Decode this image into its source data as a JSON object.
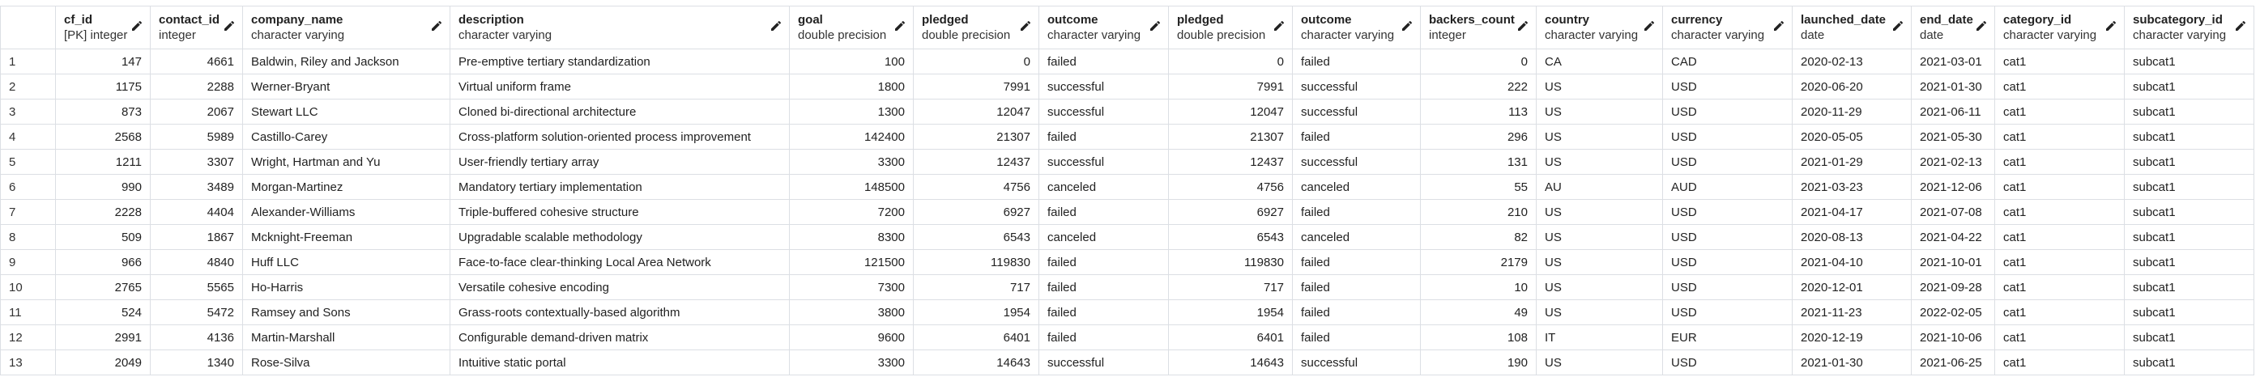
{
  "table": {
    "columns": [
      {
        "name": "cf_id",
        "type": "[PK] integer"
      },
      {
        "name": "contact_id",
        "type": "integer"
      },
      {
        "name": "company_name",
        "type": "character varying"
      },
      {
        "name": "description",
        "type": "character varying"
      },
      {
        "name": "goal",
        "type": "double precision"
      },
      {
        "name": "pledged",
        "type": "double precision"
      },
      {
        "name": "outcome",
        "type": "character varying"
      },
      {
        "name": "pledged",
        "type": "double precision"
      },
      {
        "name": "outcome",
        "type": "character varying"
      },
      {
        "name": "backers_count",
        "type": "integer"
      },
      {
        "name": "country",
        "type": "character varying"
      },
      {
        "name": "currency",
        "type": "character varying"
      },
      {
        "name": "launched_date",
        "type": "date"
      },
      {
        "name": "end_date",
        "type": "date"
      },
      {
        "name": "category_id",
        "type": "character varying"
      },
      {
        "name": "subcategory_id",
        "type": "character varying"
      }
    ],
    "rows": [
      {
        "number": 1,
        "cells": [
          147,
          4661,
          "Baldwin, Riley and Jackson",
          "Pre-emptive tertiary standardization",
          100,
          0,
          "failed",
          0,
          "failed",
          0,
          "CA",
          "CAD",
          "2020-02-13",
          "2021-03-01",
          "cat1",
          "subcat1"
        ]
      },
      {
        "number": 2,
        "cells": [
          1175,
          2288,
          "Werner-Bryant",
          "Virtual uniform frame",
          1800,
          7991,
          "successful",
          7991,
          "successful",
          222,
          "US",
          "USD",
          "2020-06-20",
          "2021-01-30",
          "cat1",
          "subcat1"
        ]
      },
      {
        "number": 3,
        "cells": [
          873,
          2067,
          "Stewart LLC",
          "Cloned bi-directional architecture",
          1300,
          12047,
          "successful",
          12047,
          "successful",
          113,
          "US",
          "USD",
          "2020-11-29",
          "2021-06-11",
          "cat1",
          "subcat1"
        ]
      },
      {
        "number": 4,
        "cells": [
          2568,
          5989,
          "Castillo-Carey",
          "Cross-platform solution-oriented process improvement",
          142400,
          21307,
          "failed",
          21307,
          "failed",
          296,
          "US",
          "USD",
          "2020-05-05",
          "2021-05-30",
          "cat1",
          "subcat1"
        ]
      },
      {
        "number": 5,
        "cells": [
          1211,
          3307,
          "Wright, Hartman and Yu",
          "User-friendly tertiary array",
          3300,
          12437,
          "successful",
          12437,
          "successful",
          131,
          "US",
          "USD",
          "2021-01-29",
          "2021-02-13",
          "cat1",
          "subcat1"
        ]
      },
      {
        "number": 6,
        "cells": [
          990,
          3489,
          "Morgan-Martinez",
          "Mandatory tertiary implementation",
          148500,
          4756,
          "canceled",
          4756,
          "canceled",
          55,
          "AU",
          "AUD",
          "2021-03-23",
          "2021-12-06",
          "cat1",
          "subcat1"
        ]
      },
      {
        "number": 7,
        "cells": [
          2228,
          4404,
          "Alexander-Williams",
          "Triple-buffered cohesive structure",
          7200,
          6927,
          "failed",
          6927,
          "failed",
          210,
          "US",
          "USD",
          "2021-04-17",
          "2021-07-08",
          "cat1",
          "subcat1"
        ]
      },
      {
        "number": 8,
        "cells": [
          509,
          1867,
          "Mcknight-Freeman",
          "Upgradable scalable methodology",
          8300,
          6543,
          "canceled",
          6543,
          "canceled",
          82,
          "US",
          "USD",
          "2020-08-13",
          "2021-04-22",
          "cat1",
          "subcat1"
        ]
      },
      {
        "number": 9,
        "cells": [
          966,
          4840,
          "Huff LLC",
          "Face-to-face clear-thinking Local Area Network",
          121500,
          119830,
          "failed",
          119830,
          "failed",
          2179,
          "US",
          "USD",
          "2021-04-10",
          "2021-10-01",
          "cat1",
          "subcat1"
        ]
      },
      {
        "number": 10,
        "cells": [
          2765,
          5565,
          "Ho-Harris",
          "Versatile cohesive encoding",
          7300,
          717,
          "failed",
          717,
          "failed",
          10,
          "US",
          "USD",
          "2020-12-01",
          "2021-09-28",
          "cat1",
          "subcat1"
        ]
      },
      {
        "number": 11,
        "cells": [
          524,
          5472,
          "Ramsey and Sons",
          "Grass-roots contextually-based algorithm",
          3800,
          1954,
          "failed",
          1954,
          "failed",
          49,
          "US",
          "USD",
          "2021-11-23",
          "2022-02-05",
          "cat1",
          "subcat1"
        ]
      },
      {
        "number": 12,
        "cells": [
          2991,
          4136,
          "Martin-Marshall",
          "Configurable demand-driven matrix",
          9600,
          6401,
          "failed",
          6401,
          "failed",
          108,
          "IT",
          "EUR",
          "2020-12-19",
          "2021-10-06",
          "cat1",
          "subcat1"
        ]
      },
      {
        "number": 13,
        "cells": [
          2049,
          1340,
          "Rose-Silva",
          "Intuitive static portal",
          3300,
          14643,
          "successful",
          14643,
          "successful",
          190,
          "US",
          "USD",
          "2021-01-30",
          "2021-06-25",
          "cat1",
          "subcat1"
        ]
      }
    ]
  }
}
